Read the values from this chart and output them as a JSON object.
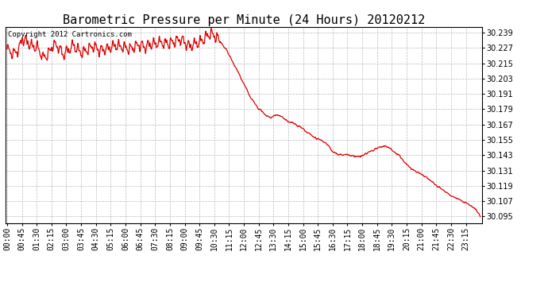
{
  "title": "Barometric Pressure per Minute (24 Hours) 20120212",
  "copyright": "Copyright 2012 Cartronics.com",
  "line_color": "#dd0000",
  "background_color": "#ffffff",
  "grid_color": "#bbbbbb",
  "ylim": [
    30.0895,
    30.2435
  ],
  "yticks": [
    30.095,
    30.107,
    30.119,
    30.131,
    30.143,
    30.155,
    30.167,
    30.179,
    30.191,
    30.203,
    30.215,
    30.227,
    30.239
  ],
  "xtick_labels": [
    "00:00",
    "00:45",
    "01:30",
    "02:15",
    "03:00",
    "03:45",
    "04:30",
    "05:15",
    "06:00",
    "06:45",
    "07:30",
    "08:15",
    "09:00",
    "09:45",
    "10:30",
    "11:15",
    "12:00",
    "12:45",
    "13:30",
    "14:15",
    "15:00",
    "15:45",
    "16:30",
    "17:15",
    "18:00",
    "18:45",
    "19:30",
    "20:15",
    "21:00",
    "21:45",
    "22:30",
    "23:15"
  ],
  "title_fontsize": 11,
  "tick_fontsize": 7,
  "copyright_fontsize": 6.5
}
